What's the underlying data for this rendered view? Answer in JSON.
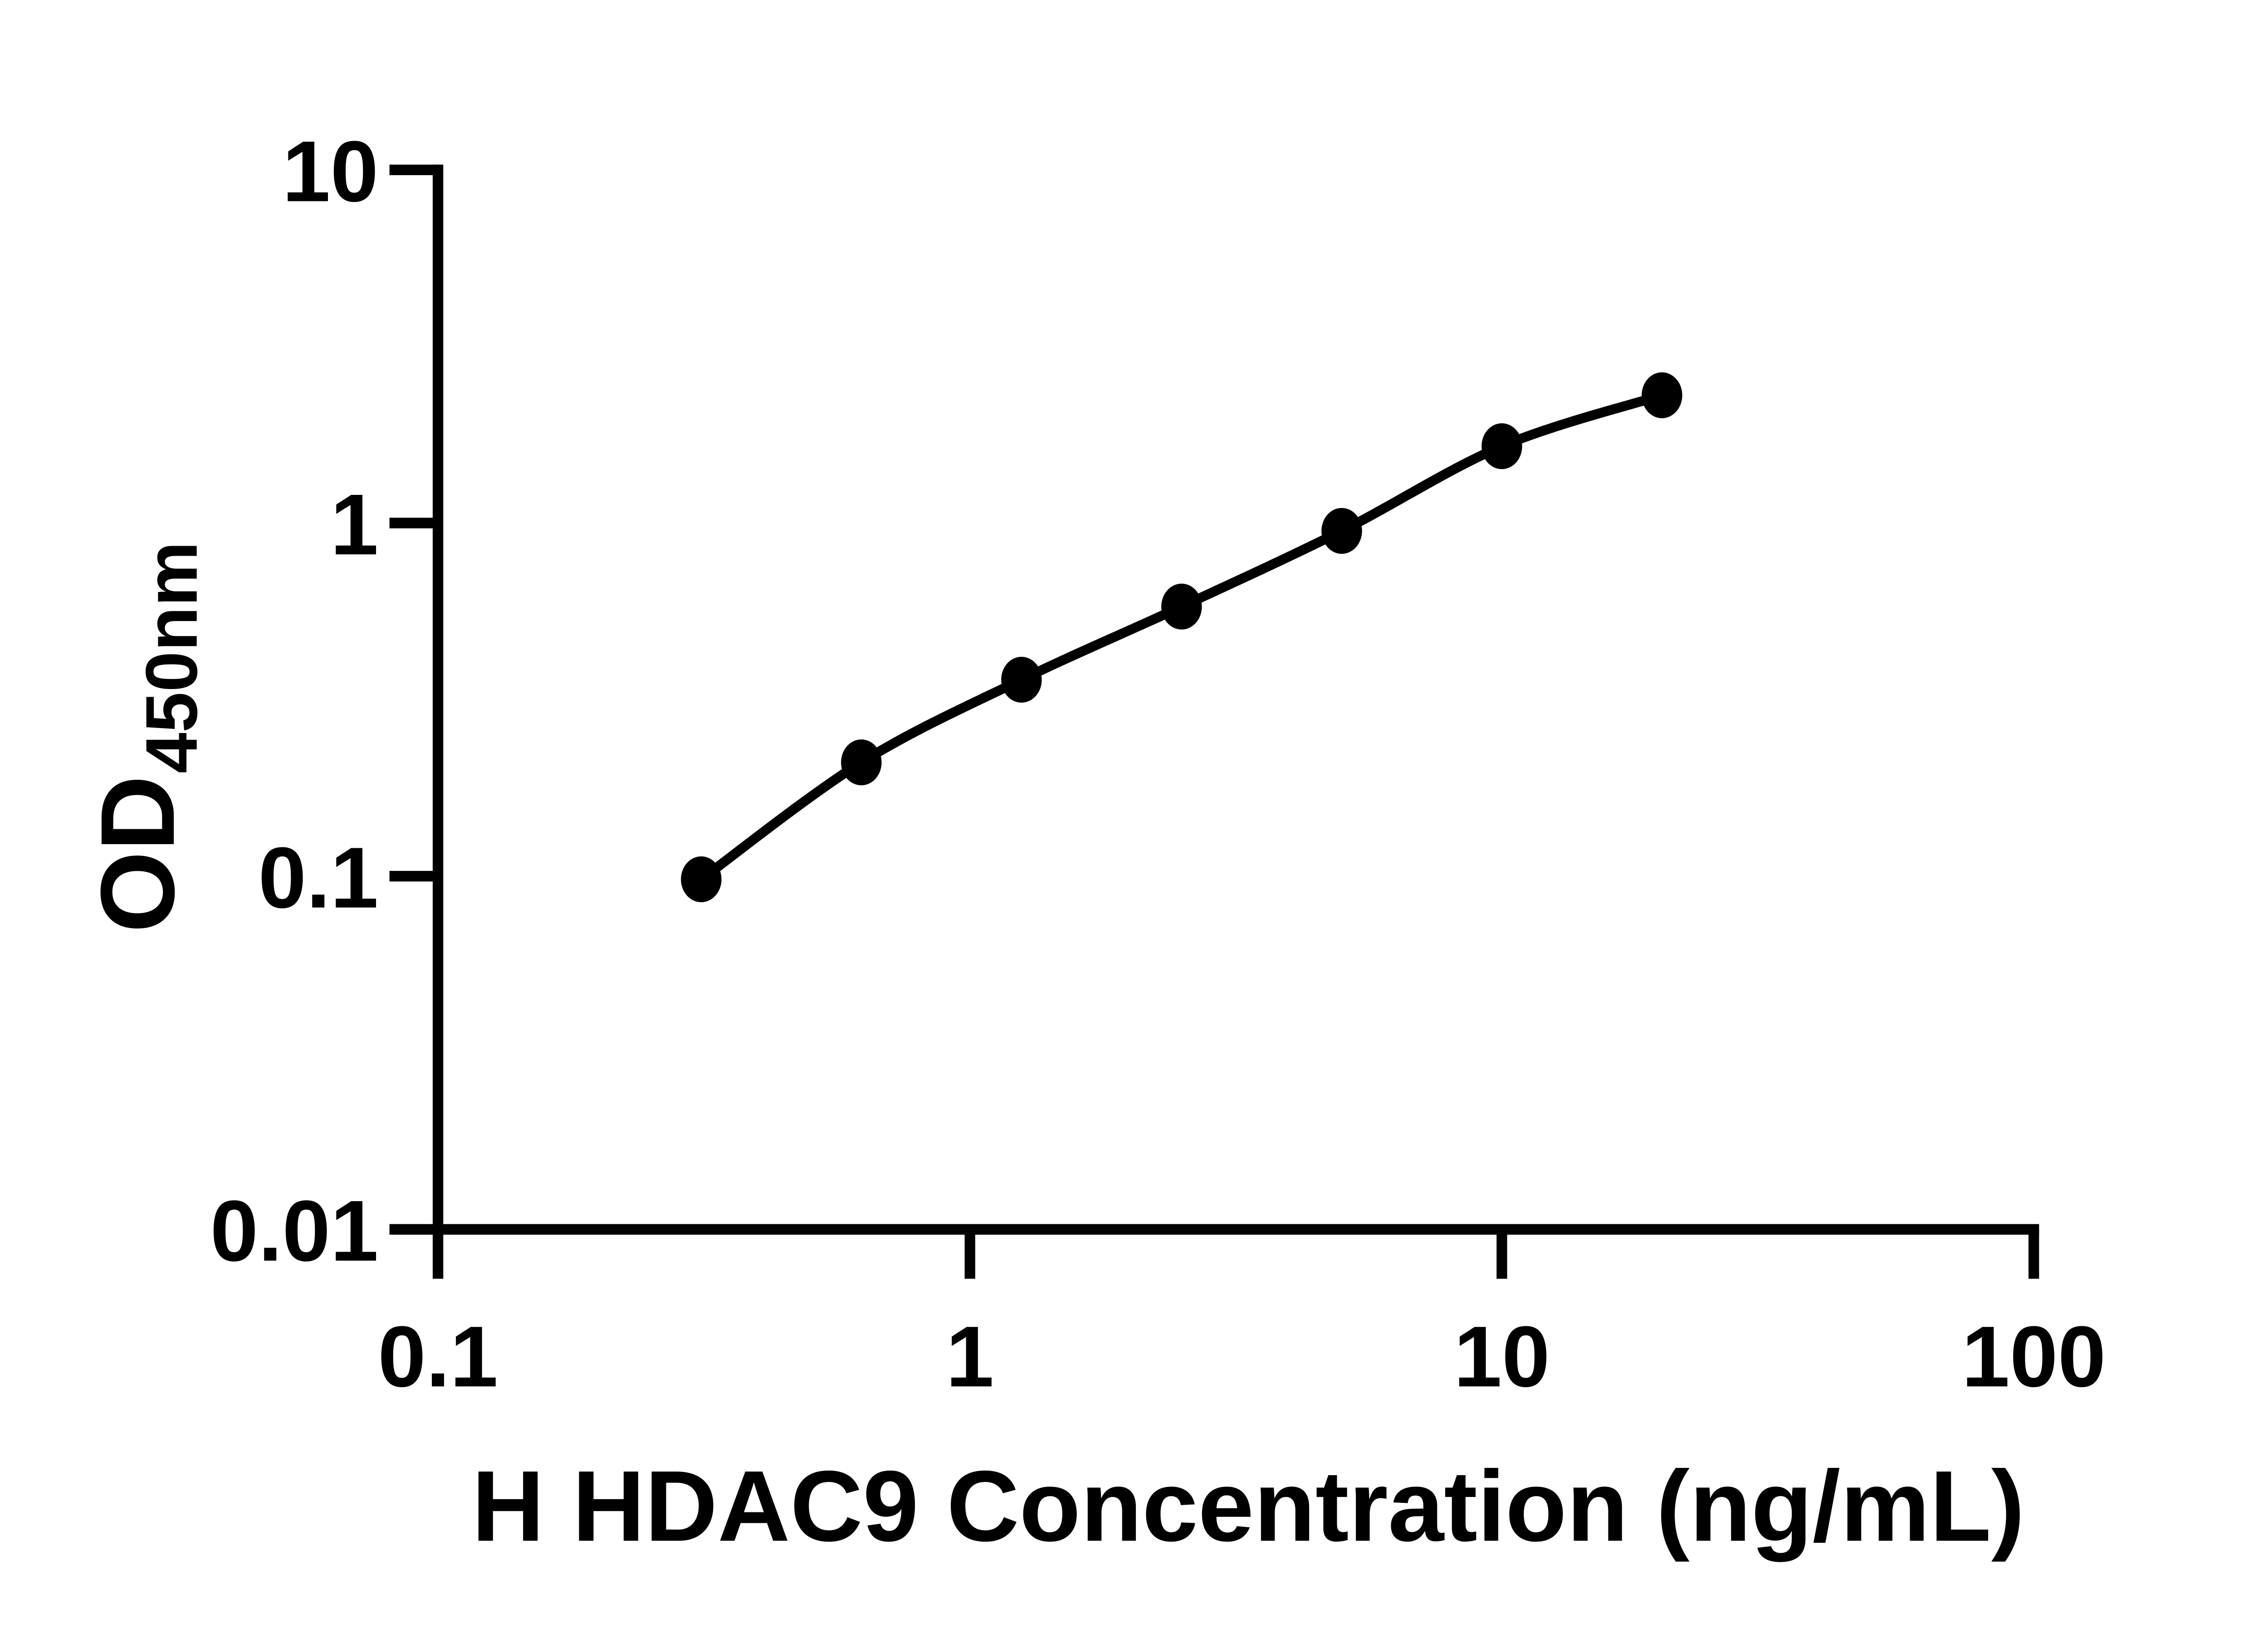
{
  "figure": {
    "background": "#ffffff"
  },
  "chart_data": {
    "type": "scatter",
    "title": "",
    "xlabel": "H HDAC9 Concentration (ng/mL)",
    "ylabel": "OD",
    "ylabel_subscript": "450nm",
    "xscale": "log",
    "yscale": "log",
    "xlim": [
      0.1,
      100
    ],
    "ylim": [
      0.01,
      10
    ],
    "grid": false,
    "legend": false,
    "axis_color": "#000000",
    "marker_color": "#000000",
    "line_color": "#000000",
    "x_ticks": [
      {
        "value": 0.1,
        "label": "0.1"
      },
      {
        "value": 1,
        "label": "1"
      },
      {
        "value": 10,
        "label": "10"
      },
      {
        "value": 100,
        "label": "100"
      }
    ],
    "y_ticks": [
      {
        "value": 10,
        "label": "10"
      },
      {
        "value": 1,
        "label": "1"
      },
      {
        "value": 0.1,
        "label": "0.1"
      },
      {
        "value": 0.01,
        "label": "0.01"
      }
    ],
    "series": [
      {
        "marker": "filled-circle",
        "fit_line": true,
        "x": [
          0.3125,
          0.625,
          1.25,
          2.5,
          5,
          10,
          20
        ],
        "y": [
          0.098,
          0.21,
          0.36,
          0.58,
          0.95,
          1.65,
          2.3
        ]
      }
    ]
  }
}
